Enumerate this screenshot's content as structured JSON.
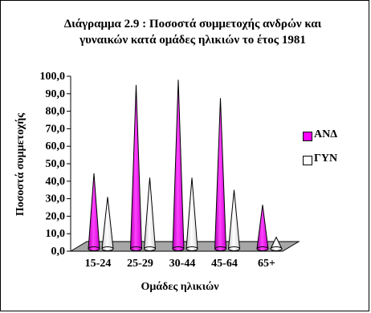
{
  "chart_data": {
    "type": "3d-cone-column",
    "title_line1": "Διάγραμμα 2.9 : Ποσοστά συμμετοχής ανδρών και",
    "title_line2": "γυναικών  κατά ομάδες ηλικιών το έτος 1981",
    "xlabel": "Ομάδες ηλικιών",
    "ylabel": "Ποσοστά συμμετοχής",
    "ylim": [
      0,
      100
    ],
    "yticks": [
      "0,0",
      "10,0",
      "20,0",
      "30,0",
      "40,0",
      "50,0",
      "60,0",
      "70,0",
      "80,0",
      "90,0",
      "100,0"
    ],
    "categories": [
      "15-24",
      "25-29",
      "30-44",
      "45-64",
      "65+"
    ],
    "series": [
      {
        "name": "ΑΝΔ",
        "values": [
          44.5,
          95.0,
          98.0,
          87.5,
          26.5
        ],
        "color": "#ff00ff"
      },
      {
        "name": "ΓΥΝ",
        "values": [
          31.0,
          42.0,
          42.0,
          35.0,
          8.0
        ],
        "color": "#ffffff"
      }
    ],
    "legend_position": "right",
    "grid": false
  }
}
